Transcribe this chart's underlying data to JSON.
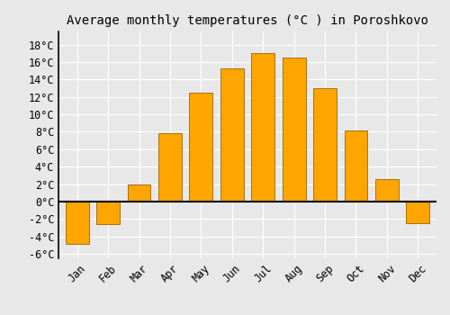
{
  "title": "Average monthly temperatures (°C ) in Poroshkovo",
  "months": [
    "Jan",
    "Feb",
    "Mar",
    "Apr",
    "May",
    "Jun",
    "Jul",
    "Aug",
    "Sep",
    "Oct",
    "Nov",
    "Dec"
  ],
  "values": [
    -4.8,
    -2.6,
    2.0,
    7.8,
    12.5,
    15.3,
    17.0,
    16.5,
    13.0,
    8.1,
    2.6,
    -2.5
  ],
  "bar_color": "#FFA500",
  "bar_edge_color": "#996600",
  "ylim": [
    -6.5,
    19.5
  ],
  "yticks": [
    -6,
    -4,
    -2,
    0,
    2,
    4,
    6,
    8,
    10,
    12,
    14,
    16,
    18
  ],
  "ytick_labels": [
    "-6°C",
    "-4°C",
    "-2°C",
    "0°C",
    "2°C",
    "4°C",
    "6°C",
    "8°C",
    "10°C",
    "12°C",
    "14°C",
    "16°C",
    "18°C"
  ],
  "background_color": "#e8e8e8",
  "plot_bg_color": "#e8e8e8",
  "grid_color": "#ffffff",
  "title_fontsize": 10,
  "tick_fontsize": 8.5,
  "bar_width": 0.75
}
